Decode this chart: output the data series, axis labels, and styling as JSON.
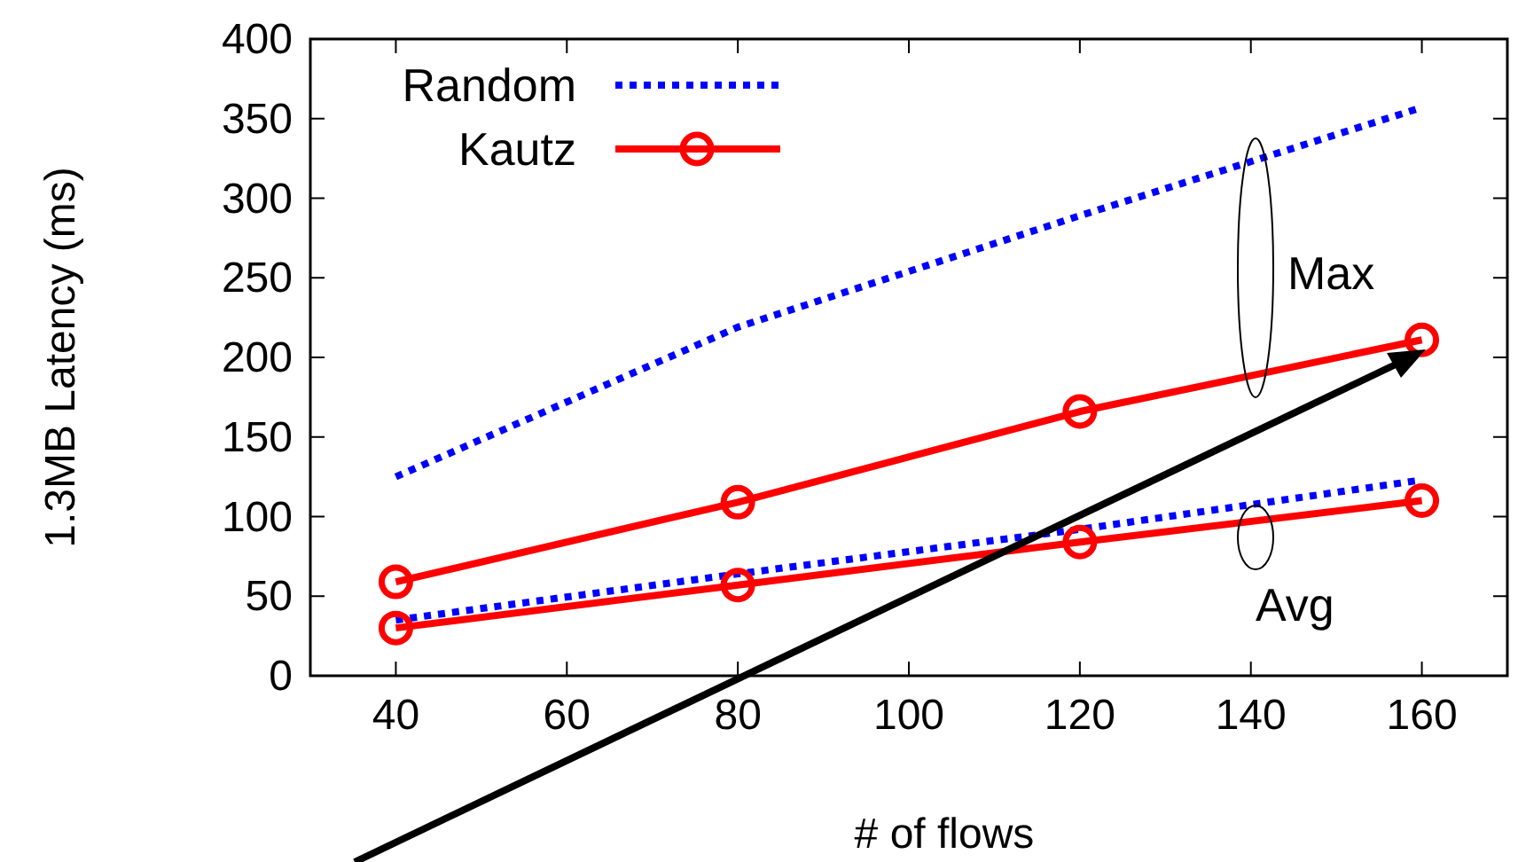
{
  "chart_data": {
    "type": "line",
    "xlabel": "# of flows",
    "ylabel": "1.3MB Latency (ms)",
    "x": [
      40,
      80,
      120,
      160
    ],
    "series": [
      {
        "name": "Random",
        "color": "#0000ff",
        "values": [
          125,
          219,
          289,
          357
        ],
        "line_style": "dotted",
        "marker": "none"
      },
      {
        "name": "Kautz",
        "color": "#ff0000",
        "values": [
          59,
          109,
          166,
          211
        ],
        "line_style": "solid",
        "marker": "circle"
      },
      {
        "color": "#0000ff",
        "values": [
          35,
          64,
          92,
          123
        ],
        "line_style": "dotted",
        "marker": "none"
      },
      {
        "color": "#ff0000",
        "values": [
          30,
          57,
          84,
          110
        ],
        "line_style": "solid",
        "marker": "circle"
      }
    ],
    "annotations": [
      "Max",
      "Avg"
    ],
    "xlim": [
      30,
      170
    ],
    "ylim": [
      0,
      400
    ],
    "xticks": [
      40,
      60,
      80,
      100,
      120,
      140,
      160
    ],
    "yticks": [
      0,
      50,
      100,
      150,
      200,
      250,
      300,
      350,
      400
    ],
    "grid": false,
    "legend": "top left"
  }
}
